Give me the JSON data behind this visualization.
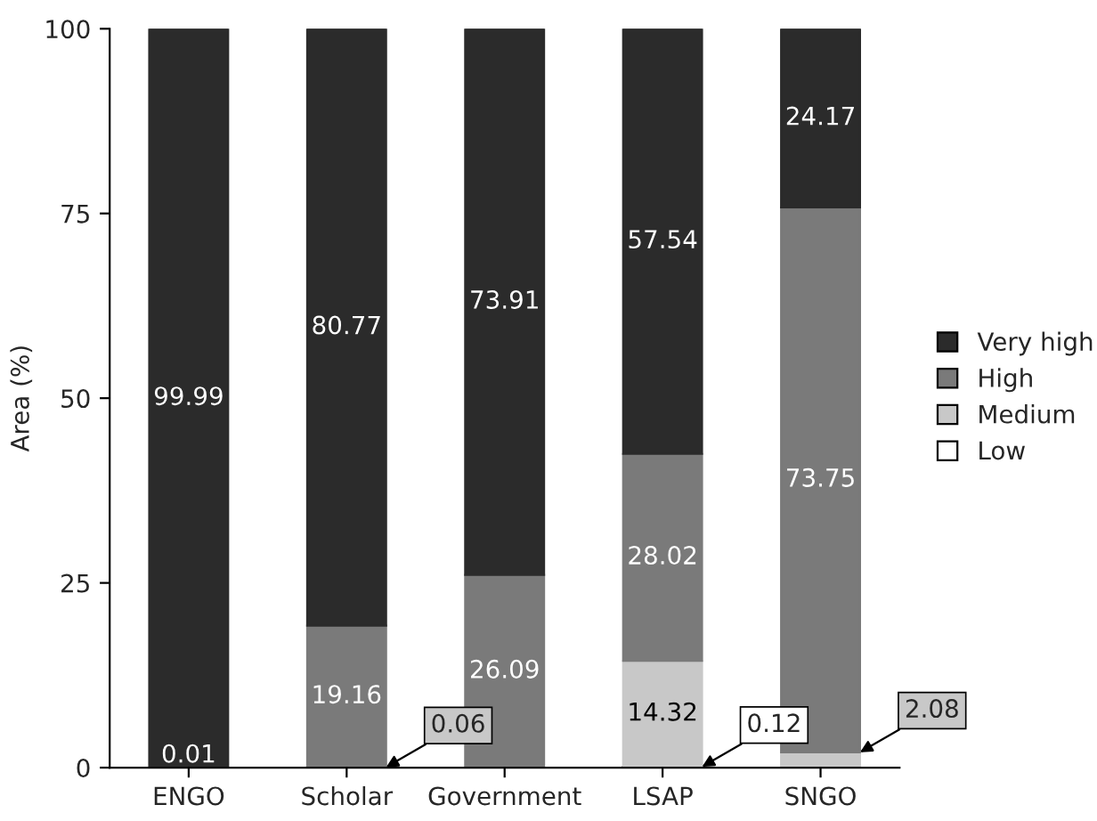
{
  "chart_data": {
    "type": "bar",
    "stacked": true,
    "ylabel": "Area (%)",
    "categories": [
      "ENGO",
      "Scholar",
      "Government",
      "LSAP",
      "SNGO"
    ],
    "series": [
      {
        "name": "Low",
        "color": "#ffffff",
        "values": [
          null,
          null,
          null,
          0.12,
          null
        ],
        "value_labels": [
          null,
          null,
          null,
          "0.12",
          null
        ]
      },
      {
        "name": "Medium",
        "color": "#c8c8c8",
        "values": [
          null,
          0.06,
          null,
          14.32,
          2.08
        ],
        "value_labels": [
          null,
          "0.06",
          null,
          "14.32",
          "2.08"
        ]
      },
      {
        "name": "High",
        "color": "#7a7a7a",
        "values": [
          0.01,
          19.16,
          26.09,
          28.02,
          73.75
        ],
        "value_labels": [
          "0.01",
          "19.16",
          "26.09",
          "28.02",
          "73.75"
        ]
      },
      {
        "name": "Very high",
        "color": "#2b2b2b",
        "values": [
          99.99,
          80.77,
          73.91,
          57.54,
          24.17
        ],
        "value_labels": [
          "99.99",
          "80.77",
          "73.91",
          "57.54",
          "24.17"
        ]
      }
    ],
    "ylim": [
      0,
      100
    ],
    "yticks": [
      0,
      25,
      50,
      75,
      100
    ],
    "grid": false,
    "legend": "right"
  }
}
